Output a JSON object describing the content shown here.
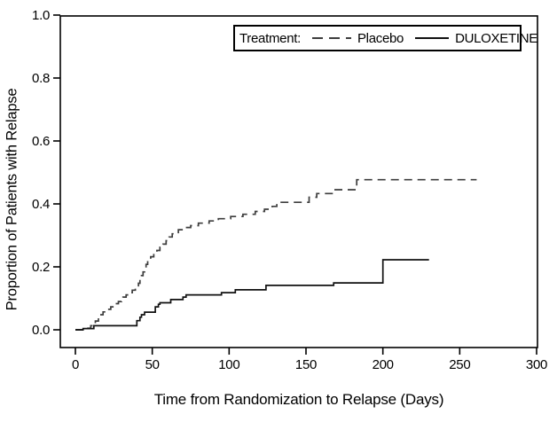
{
  "figure": {
    "background": "#ffffff",
    "line_color_dashed": "#3d3d3d",
    "line_color_solid": "#111111"
  },
  "chart_data": {
    "type": "line",
    "subtype": "kaplan_meier_step",
    "title": "",
    "xlabel": "Time from Randomization to Relapse (Days)",
    "ylabel": "Proportion of Patients with Relapse",
    "xlim": [
      0,
      300
    ],
    "ylim": [
      0.0,
      1.0
    ],
    "grid": false,
    "axis_color": "#000000",
    "x_ticks": [
      {
        "value": 0,
        "label": "0"
      },
      {
        "value": 50,
        "label": "50"
      },
      {
        "value": 100,
        "label": "100"
      },
      {
        "value": 150,
        "label": "150"
      },
      {
        "value": 200,
        "label": "200"
      },
      {
        "value": 250,
        "label": "250"
      },
      {
        "value": 300,
        "label": "300"
      }
    ],
    "y_ticks": [
      {
        "value": 0.0,
        "label": "0.0"
      },
      {
        "value": 0.2,
        "label": "0.2"
      },
      {
        "value": 0.4,
        "label": "0.4"
      },
      {
        "value": 0.6,
        "label": "0.6"
      },
      {
        "value": 0.8,
        "label": "0.8"
      },
      {
        "value": 1.0,
        "label": "1.0"
      }
    ],
    "legend": {
      "title": "Treatment:",
      "position": "top-right",
      "entries": [
        {
          "label": "Placebo",
          "line_style": "dashed"
        },
        {
          "label": "DULOXETINE",
          "line_style": "solid"
        }
      ]
    },
    "series": [
      {
        "name": "Placebo",
        "line_style": "dashed",
        "color": "#3d3d3d",
        "end_x": 261,
        "points": [
          [
            0,
            0.0
          ],
          [
            6,
            0.005
          ],
          [
            10,
            0.013
          ],
          [
            13,
            0.028
          ],
          [
            15,
            0.048
          ],
          [
            18,
            0.057
          ],
          [
            20,
            0.065
          ],
          [
            23,
            0.073
          ],
          [
            26,
            0.083
          ],
          [
            28,
            0.09
          ],
          [
            30,
            0.098
          ],
          [
            31,
            0.104
          ],
          [
            33,
            0.111
          ],
          [
            35,
            0.118
          ],
          [
            37,
            0.126
          ],
          [
            39,
            0.135
          ],
          [
            41,
            0.148
          ],
          [
            42,
            0.161
          ],
          [
            43,
            0.172
          ],
          [
            44,
            0.184
          ],
          [
            45,
            0.198
          ],
          [
            46,
            0.208
          ],
          [
            47,
            0.222
          ],
          [
            49,
            0.232
          ],
          [
            51,
            0.242
          ],
          [
            53,
            0.252
          ],
          [
            55,
            0.262
          ],
          [
            57,
            0.272
          ],
          [
            59,
            0.283
          ],
          [
            61,
            0.295
          ],
          [
            63,
            0.305
          ],
          [
            67,
            0.318
          ],
          [
            71,
            0.325
          ],
          [
            75,
            0.331
          ],
          [
            80,
            0.339
          ],
          [
            87,
            0.346
          ],
          [
            93,
            0.353
          ],
          [
            101,
            0.36
          ],
          [
            109,
            0.367
          ],
          [
            117,
            0.376
          ],
          [
            123,
            0.383
          ],
          [
            128,
            0.392
          ],
          [
            131,
            0.405
          ],
          [
            152,
            0.421
          ],
          [
            157,
            0.433
          ],
          [
            168,
            0.445
          ],
          [
            183,
            0.477
          ]
        ]
      },
      {
        "name": "DULOXETINE",
        "line_style": "solid",
        "color": "#111111",
        "end_x": 230,
        "points": [
          [
            0,
            0.0
          ],
          [
            5,
            0.004
          ],
          [
            12,
            0.013
          ],
          [
            40,
            0.029
          ],
          [
            42,
            0.04
          ],
          [
            43,
            0.048
          ],
          [
            45,
            0.056
          ],
          [
            52,
            0.073
          ],
          [
            54,
            0.081
          ],
          [
            55,
            0.086
          ],
          [
            62,
            0.096
          ],
          [
            70,
            0.104
          ],
          [
            72,
            0.111
          ],
          [
            95,
            0.118
          ],
          [
            104,
            0.127
          ],
          [
            124,
            0.141
          ],
          [
            168,
            0.149
          ],
          [
            200,
            0.2225
          ]
        ]
      }
    ]
  }
}
